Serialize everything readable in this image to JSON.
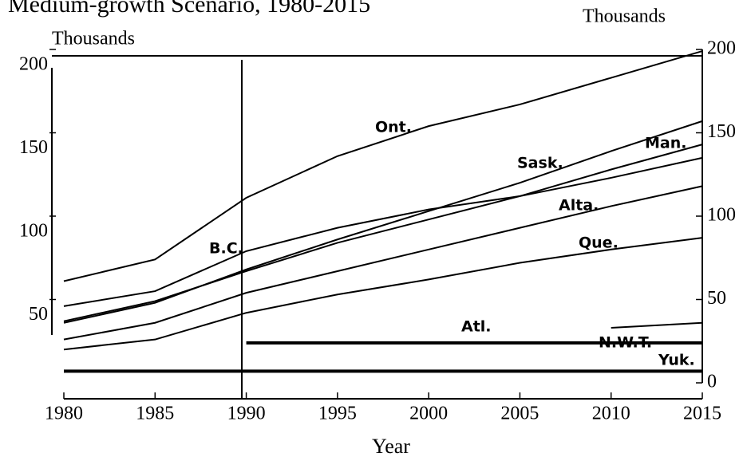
{
  "chart_data": {
    "type": "line",
    "title": "Medium-growth Scenario, 1980-2015",
    "y_label": "Thousands",
    "y2_label": "Thousands",
    "x_label": "Year",
    "x": [
      1980,
      1985,
      1990,
      1995,
      2000,
      2005,
      2010,
      2015
    ],
    "xlim": [
      1980,
      2015
    ],
    "xticks": [
      1980,
      1985,
      1990,
      1995,
      2000,
      2005,
      2010,
      2015
    ],
    "ylim": [
      0,
      200
    ],
    "yticks": [
      50,
      100,
      150,
      200
    ],
    "y2lim": [
      0,
      200
    ],
    "y2ticks": [
      0,
      50,
      100,
      150,
      200
    ],
    "series": [
      {
        "name": "Ont.",
        "color": "#000000",
        "values": [
          61,
          74,
          111,
          136,
          154,
          167,
          183,
          199
        ]
      },
      {
        "name": "B.C.",
        "color": "#000000",
        "values": [
          46,
          55,
          79,
          93,
          104,
          112,
          123,
          135
        ]
      },
      {
        "name": "Sask.",
        "color": "#000000",
        "values": [
          36,
          48,
          68,
          86,
          103,
          120,
          139,
          157
        ]
      },
      {
        "name": "Man.",
        "color": "#000000",
        "values": [
          37,
          49,
          67,
          84,
          98,
          112,
          128,
          143
        ]
      },
      {
        "name": "Alta.",
        "color": "#000000",
        "values": [
          26,
          36,
          54,
          67,
          80,
          93,
          106,
          118
        ]
      },
      {
        "name": "Que.",
        "color": "#000000",
        "values": [
          20,
          26,
          42,
          53,
          62,
          72,
          80,
          87
        ]
      },
      {
        "name": "Atl.",
        "color": "#000000",
        "values": [
          null,
          null,
          24,
          24,
          24,
          24,
          24,
          24
        ]
      },
      {
        "name": "N.W.T.",
        "color": "#000000",
        "values": [
          null,
          null,
          null,
          null,
          null,
          null,
          33,
          36
        ]
      },
      {
        "name": "Yuk.",
        "color": "#000000",
        "values": [
          7,
          7,
          7,
          7,
          7,
          7,
          7,
          7
        ]
      }
    ]
  }
}
